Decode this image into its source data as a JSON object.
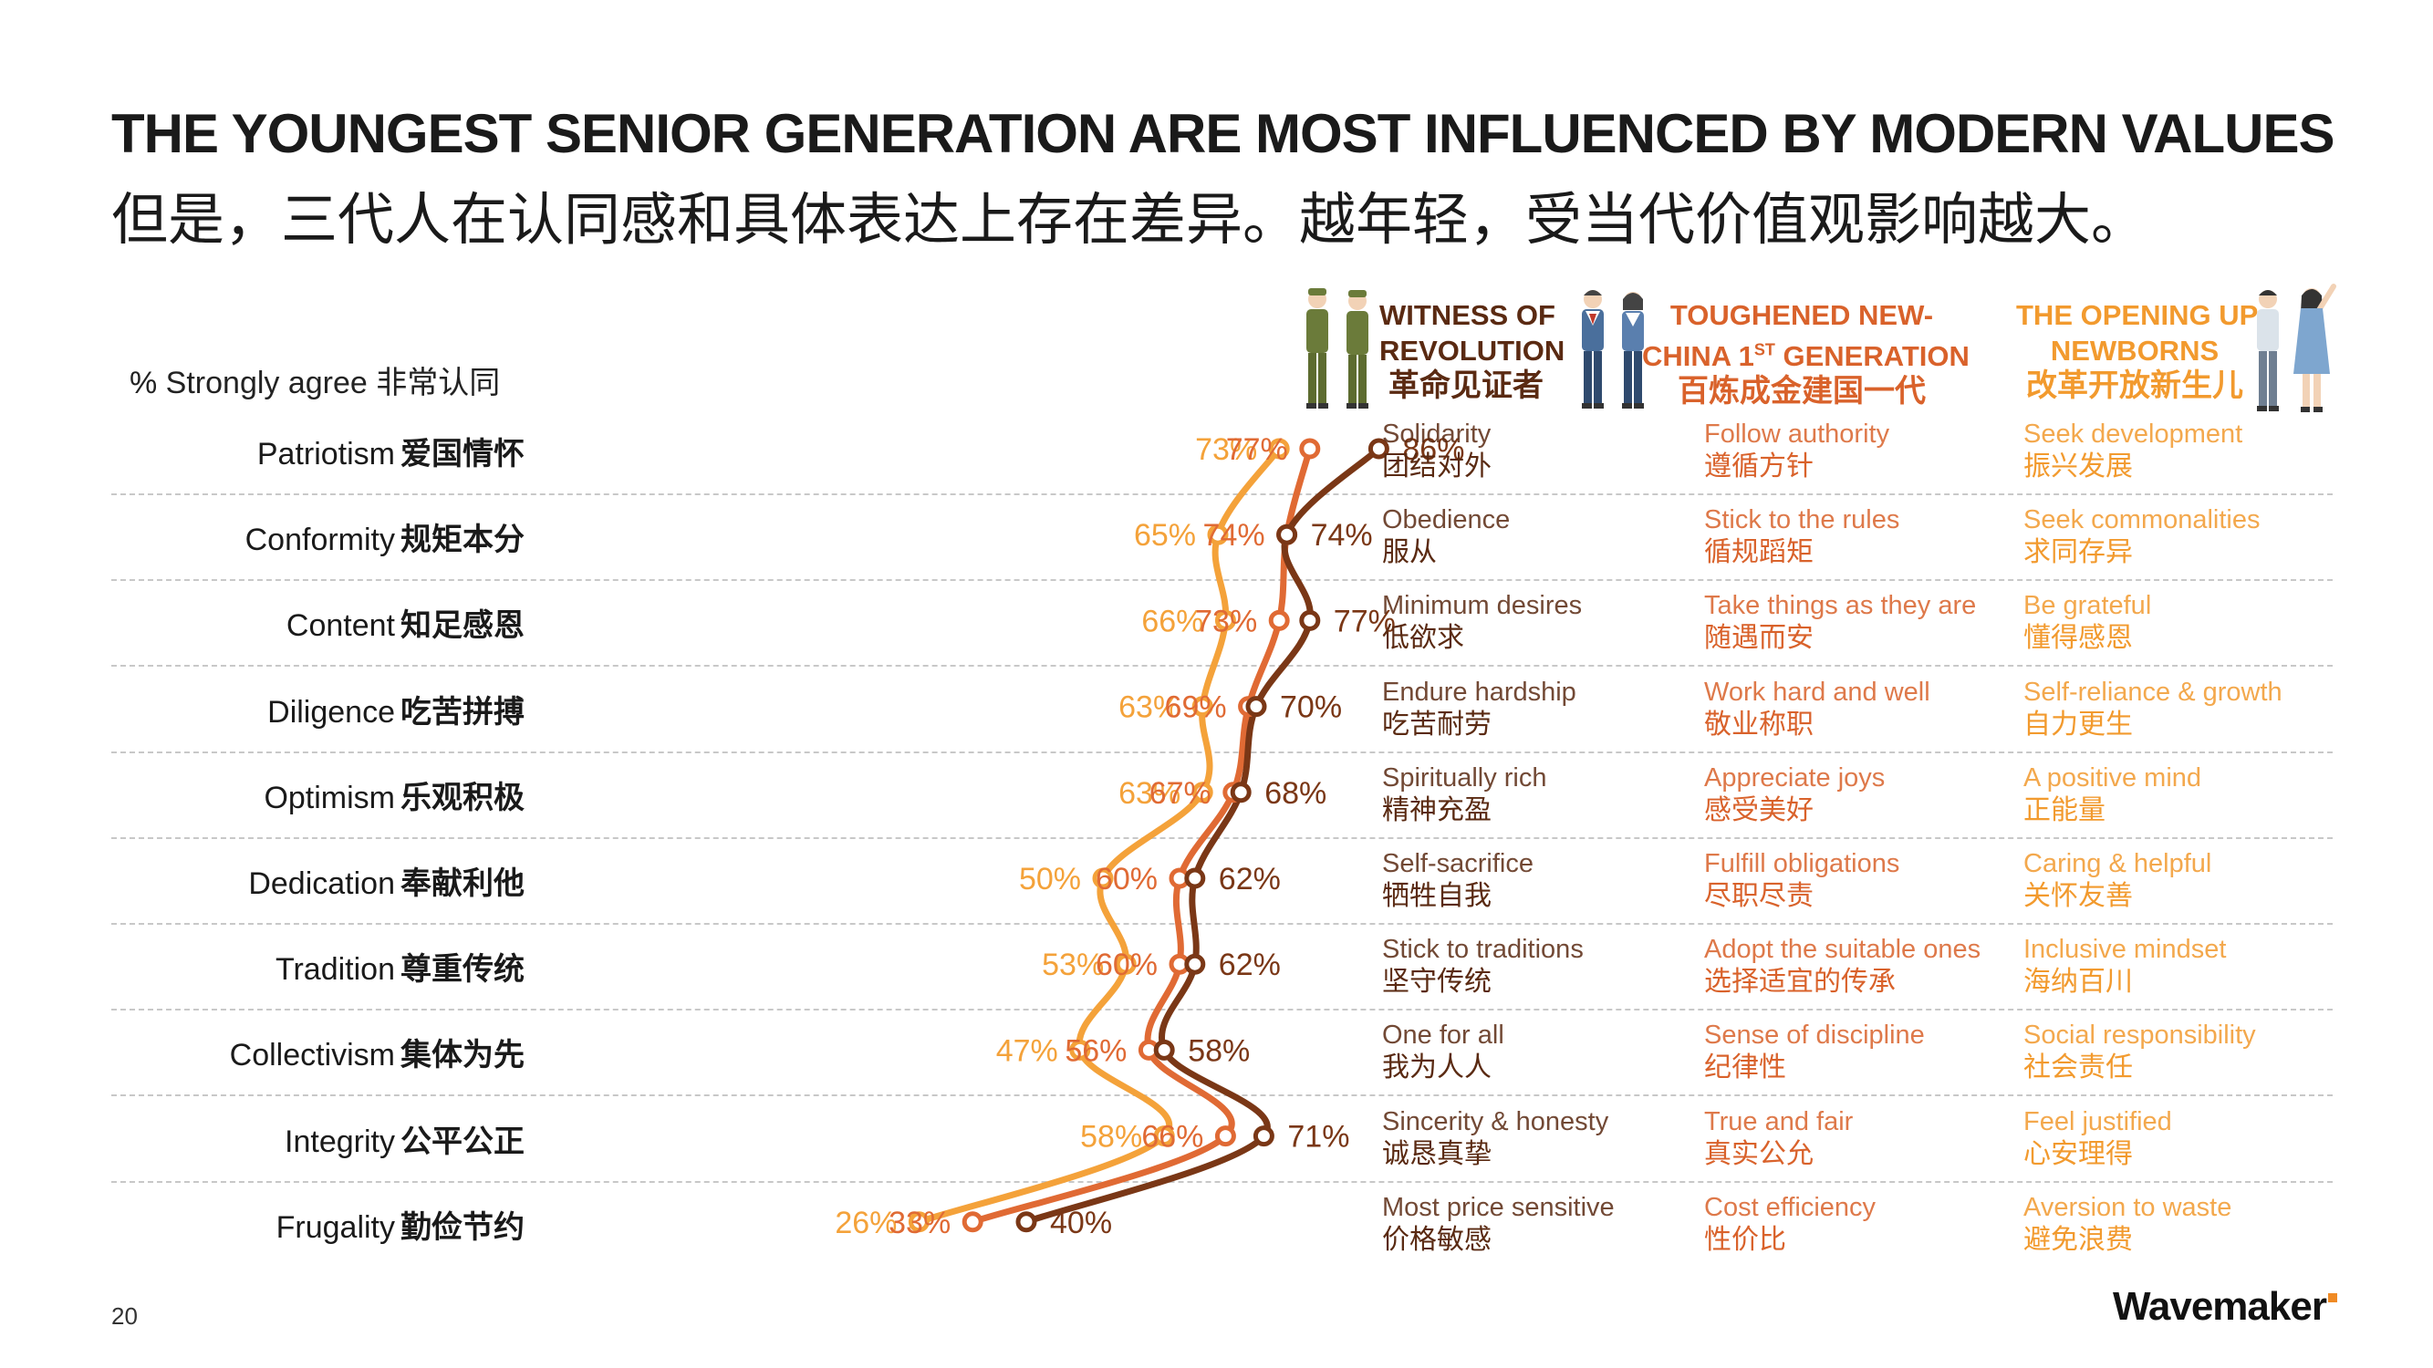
{
  "title_en": "THE YOUNGEST SENIOR GENERATION ARE MOST INFLUENCED BY MODERN VALUES",
  "title_cn": "但是，三代人在认同感和具体表达上存在差异。越年轻，受当代价值观影响越大。",
  "measure_label": "% Strongly agree 非常认同",
  "page_number": "20",
  "logo": "Wavemaker",
  "colors": {
    "revolution": "#7a3716",
    "new_china": "#e06a34",
    "opening_up": "#f4a23a",
    "grid": "#c8c8c8"
  },
  "generations": [
    {
      "key": "revolution",
      "name_line1": "WITNESS OF",
      "name_line2": "REVOLUTION",
      "name_cn": "革命见证者",
      "icon": "two-soldiers-illustration"
    },
    {
      "key": "new_china",
      "name_line1": "TOUGHENED NEW-",
      "name_line2_pre": "CHINA 1",
      "name_line2_sup": "ST",
      "name_line2_post": " GENERATION",
      "name_cn": "百炼成金建国一代",
      "icon": "two-workers-illustration"
    },
    {
      "key": "opening_up",
      "name_line1": "THE OPENING UP",
      "name_line2": "NEWBORNS",
      "name_cn": "改革开放新生儿",
      "icon": "two-young-people-illustration"
    }
  ],
  "rows": [
    {
      "en": "Patriotism",
      "cn": "爱国情怀",
      "revolution": {
        "en": "Solidarity",
        "cn": "团结对外"
      },
      "new_china": {
        "en": "Follow authority",
        "cn": "遵循方针"
      },
      "opening_up": {
        "en": "Seek development",
        "cn": "振兴发展"
      }
    },
    {
      "en": "Conformity",
      "cn": "规矩本分",
      "revolution": {
        "en": "Obedience",
        "cn": "服从"
      },
      "new_china": {
        "en": "Stick to the rules",
        "cn": "循规蹈矩"
      },
      "opening_up": {
        "en": "Seek commonalities",
        "cn": "求同存异"
      }
    },
    {
      "en": "Content",
      "cn": "知足感恩",
      "revolution": {
        "en": "Minimum desires",
        "cn": "低欲求"
      },
      "new_china": {
        "en": "Take things as they are",
        "cn": "随遇而安"
      },
      "opening_up": {
        "en": "Be grateful",
        "cn": "懂得感恩"
      }
    },
    {
      "en": "Diligence",
      "cn": "吃苦拼搏",
      "revolution": {
        "en": "Endure hardship",
        "cn": "吃苦耐劳"
      },
      "new_china": {
        "en": "Work hard and well",
        "cn": "敬业称职"
      },
      "opening_up": {
        "en": "Self-reliance & growth",
        "cn": "自力更生"
      }
    },
    {
      "en": "Optimism",
      "cn": "乐观积极",
      "revolution": {
        "en": "Spiritually rich",
        "cn": "精神充盈"
      },
      "new_china": {
        "en": "Appreciate joys",
        "cn": "感受美好"
      },
      "opening_up": {
        "en": "A positive mind",
        "cn": "正能量"
      }
    },
    {
      "en": "Dedication",
      "cn": "奉献利他",
      "revolution": {
        "en": "Self-sacrifice",
        "cn": "牺牲自我"
      },
      "new_china": {
        "en": "Fulfill obligations",
        "cn": "尽职尽责"
      },
      "opening_up": {
        "en": "Caring & helpful",
        "cn": "关怀友善"
      }
    },
    {
      "en": "Tradition",
      "cn": "尊重传统",
      "revolution": {
        "en": "Stick to traditions",
        "cn": "坚守传统"
      },
      "new_china": {
        "en": "Adopt the suitable ones",
        "cn": "选择适宜的传承"
      },
      "opening_up": {
        "en": "Inclusive mindset",
        "cn": "海纳百川"
      }
    },
    {
      "en": "Collectivism",
      "cn": "集体为先",
      "revolution": {
        "en": "One for all",
        "cn": "我为人人"
      },
      "new_china": {
        "en": "Sense of discipline",
        "cn": "纪律性"
      },
      "opening_up": {
        "en": "Social responsibility",
        "cn": "社会责任"
      }
    },
    {
      "en": "Integrity",
      "cn": "公平公正",
      "revolution": {
        "en": "Sincerity & honesty",
        "cn": "诚恳真挚"
      },
      "new_china": {
        "en": "True and fair",
        "cn": "真实公允"
      },
      "opening_up": {
        "en": "Feel justified",
        "cn": "心安理得"
      }
    },
    {
      "en": "Frugality",
      "cn": "勤俭节约",
      "revolution": {
        "en": "Most price sensitive",
        "cn": "价格敏感"
      },
      "new_china": {
        "en": "Cost efficiency",
        "cn": "性价比"
      },
      "opening_up": {
        "en": "Aversion to waste",
        "cn": "避免浪费"
      }
    }
  ],
  "chart_data": {
    "type": "line",
    "orientation": "horizontal",
    "title": "% Strongly agree 非常认同",
    "categories": [
      "Patriotism 爱国情怀",
      "Conformity 规矩本分",
      "Content 知足感恩",
      "Diligence 吃苦拼搏",
      "Optimism 乐观积极",
      "Dedication 奉献利他",
      "Tradition 尊重传统",
      "Collectivism 集体为先",
      "Integrity 公平公正",
      "Frugality 勤俭节约"
    ],
    "value_unit": "%",
    "series": [
      {
        "name": "WITNESS OF REVOLUTION 革命见证者",
        "values": [
          86,
          74,
          77,
          70,
          68,
          62,
          62,
          58,
          71,
          40
        ]
      },
      {
        "name": "TOUGHENED NEW-CHINA 1ST GENERATION 百炼成金建国一代",
        "values": [
          77,
          74,
          73,
          69,
          67,
          60,
          60,
          56,
          66,
          33
        ]
      },
      {
        "name": "THE OPENING UP NEWBORNS 改革开放新生儿",
        "values": [
          73,
          65,
          66,
          63,
          63,
          50,
          53,
          47,
          58,
          26
        ]
      }
    ]
  }
}
